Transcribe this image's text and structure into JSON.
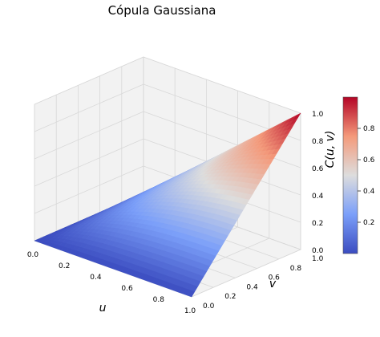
{
  "chart_data": {
    "type": "surface3d",
    "title": "Cópula Gaussiana",
    "xlabel": "u",
    "ylabel": "v",
    "zlabel": "C(u, v)",
    "xlim": [
      0.0,
      1.0
    ],
    "ylim": [
      0.0,
      1.0
    ],
    "zlim": [
      0.0,
      1.0
    ],
    "xticks": [
      "0.0",
      "0.2",
      "0.4",
      "0.6",
      "0.8",
      "1.0"
    ],
    "yticks": [
      "0.0",
      "0.2",
      "0.4",
      "0.6",
      "0.8",
      "1.0"
    ],
    "zticks": [
      "0.0",
      "0.2",
      "0.4",
      "0.6",
      "0.8",
      "1.0"
    ],
    "colormap": "coolwarm",
    "colorbar": {
      "range": [
        0.0,
        1.0
      ],
      "ticks": [
        "0.2",
        "0.4",
        "0.6",
        "0.8"
      ],
      "tick_values": [
        0.2,
        0.4,
        0.6,
        0.8
      ]
    },
    "grid": true,
    "surface": {
      "function": "Gaussian copula C(u, v)",
      "grid_u": [
        0.0,
        0.125,
        0.25,
        0.375,
        0.5,
        0.625,
        0.75,
        0.875,
        1.0
      ],
      "grid_v": [
        0.0,
        0.125,
        0.25,
        0.375,
        0.5,
        0.625,
        0.75,
        0.875,
        1.0
      ],
      "values": [
        [
          0.0,
          0.0,
          0.0,
          0.0,
          0.0,
          0.0,
          0.0,
          0.0,
          0.0
        ],
        [
          0.0,
          0.055,
          0.085,
          0.102,
          0.112,
          0.118,
          0.122,
          0.124,
          0.125
        ],
        [
          0.0,
          0.085,
          0.145,
          0.186,
          0.212,
          0.23,
          0.241,
          0.247,
          0.25
        ],
        [
          0.0,
          0.102,
          0.186,
          0.25,
          0.298,
          0.332,
          0.355,
          0.369,
          0.375
        ],
        [
          0.0,
          0.112,
          0.212,
          0.298,
          0.367,
          0.42,
          0.458,
          0.485,
          0.5
        ],
        [
          0.0,
          0.118,
          0.23,
          0.332,
          0.42,
          0.493,
          0.55,
          0.593,
          0.625
        ],
        [
          0.0,
          0.122,
          0.241,
          0.355,
          0.458,
          0.55,
          0.628,
          0.694,
          0.75
        ],
        [
          0.0,
          0.124,
          0.247,
          0.369,
          0.485,
          0.593,
          0.694,
          0.784,
          0.875
        ],
        [
          0.0,
          0.125,
          0.25,
          0.375,
          0.5,
          0.625,
          0.75,
          0.875,
          1.0
        ]
      ]
    },
    "colors": {
      "low": "#3b4cc0",
      "mid": "#dddddd",
      "high": "#b40426",
      "pane": "#f2f2f2",
      "grid": "#d8d8d8"
    }
  }
}
